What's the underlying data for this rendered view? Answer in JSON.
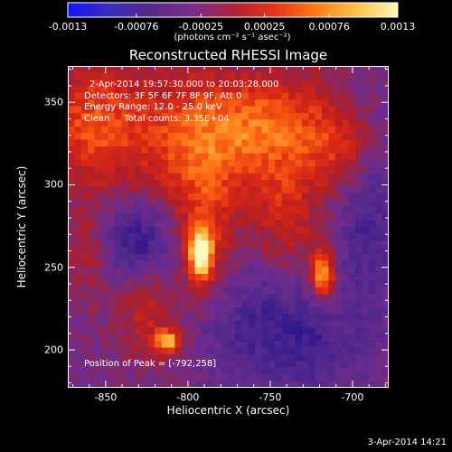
{
  "colorbar": {
    "tick_labels": [
      "-0.0013",
      "-0.00076",
      "-0.00025",
      "0.00025",
      "0.00076",
      "0.0013"
    ],
    "range": [
      -0.0013,
      0.0013
    ],
    "units": "(photons cm⁻² s⁻¹ asec⁻²)",
    "colors": [
      "#1414ff",
      "#3a2cc0",
      "#55288a",
      "#7a2b8e",
      "#b0203a",
      "#e8321a",
      "#ff7a12",
      "#ffc24a",
      "#fff7b8"
    ]
  },
  "title": "Reconstructed RHESSI Image",
  "annotations": {
    "time": "2-Apr-2014 19:57:30.000 to 20:03:28.000",
    "detectors": "Detectors: 3F 5F 6F 7F 8F 9F, Att 0",
    "energy": "Energy Range: 12.0 - 25.0 keV",
    "clean": "Clean     Total counts: 3.35E+04",
    "peak": "Position of Peak = [-792,258]"
  },
  "footer_date": "3-Apr-2014 14:21",
  "chart_data": {
    "type": "heatmap",
    "title": "Reconstructed RHESSI Image",
    "xlabel": "Heliocentric X (arcsec)",
    "ylabel": "Heliocentric Y (arcsec)",
    "xlim": [
      -873,
      -678
    ],
    "ylim": [
      177,
      372
    ],
    "x_tick_labels": [
      "-850",
      "-800",
      "-750",
      "-700"
    ],
    "x_ticks": [
      -850,
      -800,
      -750,
      -700
    ],
    "y_tick_labels": [
      "200",
      "250",
      "300",
      "350"
    ],
    "y_ticks": [
      200,
      250,
      300,
      350
    ],
    "peak_position": [
      -792,
      258
    ],
    "sources": [
      {
        "x": -792,
        "y": 258,
        "value": 0.0013
      },
      {
        "x": -718,
        "y": 246,
        "value": 0.0011
      },
      {
        "x": -812,
        "y": 205,
        "value": 0.0009
      },
      {
        "x": -800,
        "y": 342,
        "value": 0.0006
      },
      {
        "x": -745,
        "y": 338,
        "value": 0.0006
      }
    ]
  }
}
